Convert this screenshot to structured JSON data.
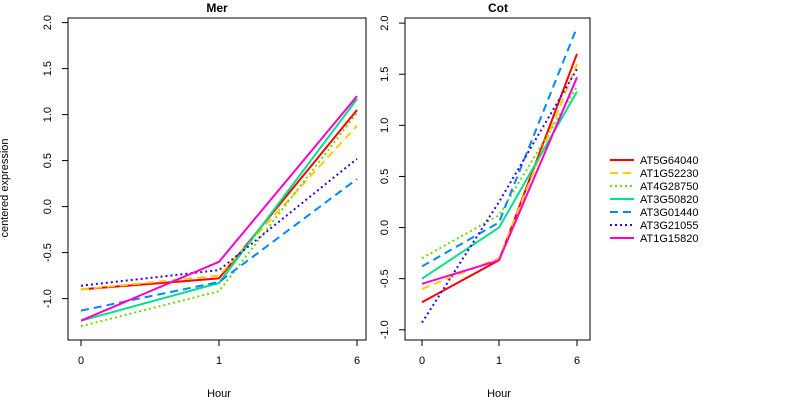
{
  "chart_data": [
    {
      "type": "line",
      "title": "Mer",
      "xlabel": "Hour",
      "ylabel": "centered expression",
      "categories": [
        "0",
        "1",
        "6"
      ],
      "ylim": [
        -1.45,
        2.05
      ],
      "yticks": [
        -1.0,
        -0.5,
        0.0,
        0.5,
        1.0,
        1.5,
        2.0
      ],
      "grid": false,
      "series": [
        {
          "name": "AT5G64040",
          "color": "#ff0000",
          "dash": "solid",
          "values": [
            -0.9,
            -0.78,
            1.05
          ]
        },
        {
          "name": "AT1G52230",
          "color": "#ffcc00",
          "dash": "dashed",
          "values": [
            -0.9,
            -0.75,
            0.88
          ]
        },
        {
          "name": "AT4G28750",
          "color": "#66dd00",
          "dash": "dotted",
          "values": [
            -1.3,
            -0.92,
            1.02
          ]
        },
        {
          "name": "AT3G50820",
          "color": "#00e08a",
          "dash": "solid",
          "values": [
            -1.24,
            -0.83,
            1.17
          ]
        },
        {
          "name": "AT3G01440",
          "color": "#0088ff",
          "dash": "dashed",
          "values": [
            -1.13,
            -0.82,
            0.3
          ]
        },
        {
          "name": "AT3G21055",
          "color": "#3300ff",
          "dash": "dotted",
          "values": [
            -0.86,
            -0.69,
            0.52
          ]
        },
        {
          "name": "AT1G15820",
          "color": "#ff00cc",
          "dash": "solid",
          "values": [
            -1.24,
            -0.6,
            1.2
          ]
        }
      ]
    },
    {
      "type": "line",
      "title": "Cot",
      "xlabel": "Hour",
      "ylabel": "",
      "categories": [
        "0",
        "1",
        "6"
      ],
      "ylim": [
        -1.1,
        2.05
      ],
      "yticks": [
        -1.0,
        -0.5,
        0.0,
        0.5,
        1.0,
        1.5,
        2.0
      ],
      "grid": false,
      "series": [
        {
          "name": "AT5G64040",
          "color": "#ff0000",
          "dash": "solid",
          "values": [
            -0.73,
            -0.32,
            1.7
          ]
        },
        {
          "name": "AT1G52230",
          "color": "#ffcc00",
          "dash": "dashed",
          "values": [
            -0.6,
            -0.3,
            1.6
          ]
        },
        {
          "name": "AT4G28750",
          "color": "#66dd00",
          "dash": "dotted",
          "values": [
            -0.3,
            0.12,
            1.38
          ]
        },
        {
          "name": "AT3G50820",
          "color": "#00e08a",
          "dash": "solid",
          "values": [
            -0.5,
            0.0,
            1.33
          ]
        },
        {
          "name": "AT3G01440",
          "color": "#0088ff",
          "dash": "dashed",
          "values": [
            -0.38,
            0.05,
            1.96
          ]
        },
        {
          "name": "AT3G21055",
          "color": "#3300ff",
          "dash": "dotted",
          "values": [
            -0.93,
            0.25,
            1.55
          ]
        },
        {
          "name": "AT1G15820",
          "color": "#ff00cc",
          "dash": "solid",
          "values": [
            -0.55,
            -0.32,
            1.47
          ]
        }
      ]
    }
  ],
  "legend": {
    "position": "right",
    "items": [
      {
        "label": "AT5G64040",
        "color": "#ff0000",
        "dash": "solid"
      },
      {
        "label": "AT1G52230",
        "color": "#ffcc00",
        "dash": "dashed"
      },
      {
        "label": "AT4G28750",
        "color": "#66dd00",
        "dash": "dotted"
      },
      {
        "label": "AT3G50820",
        "color": "#00e08a",
        "dash": "solid"
      },
      {
        "label": "AT3G01440",
        "color": "#0088ff",
        "dash": "dashed"
      },
      {
        "label": "AT3G21055",
        "color": "#3300ff",
        "dash": "dotted"
      },
      {
        "label": "AT1G15820",
        "color": "#ff00cc",
        "dash": "solid"
      }
    ]
  }
}
